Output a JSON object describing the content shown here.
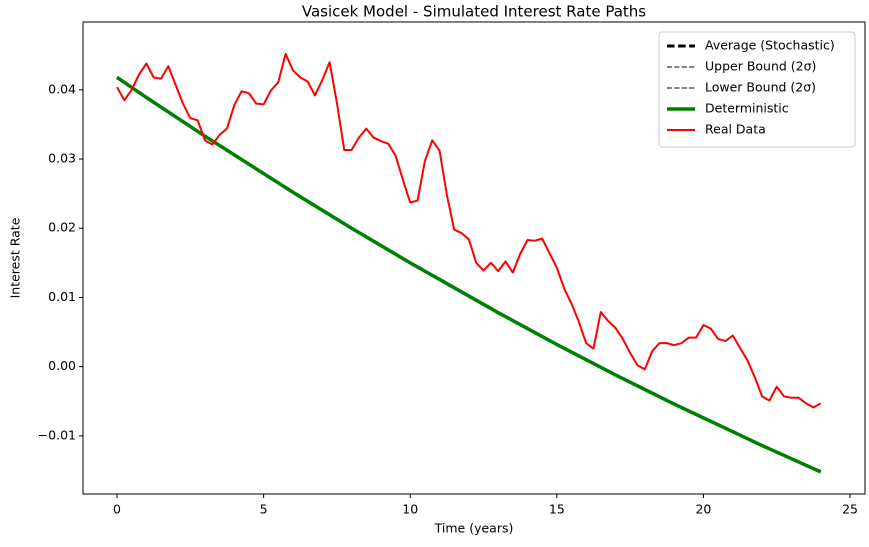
{
  "chart_data": {
    "type": "line",
    "title": "Vasicek Model - Simulated Interest Rate Paths",
    "x_label": "Time (years)",
    "y_label": "Interest Rate",
    "xlim": [
      -1.16,
      25.51
    ],
    "ylim": [
      -0.0184,
      0.0498
    ],
    "xticks": [
      0,
      5,
      10,
      15,
      20,
      25
    ],
    "yticks": [
      {
        "value": -0.01,
        "label": "−0.01"
      },
      {
        "value": 0,
        "label": "0.00"
      },
      {
        "value": 0.01,
        "label": "0.01"
      },
      {
        "value": 0.02,
        "label": "0.02"
      },
      {
        "value": 0.03,
        "label": "0.03"
      },
      {
        "value": 0.04,
        "label": "0.04"
      }
    ],
    "grid": false,
    "legend": "upper right",
    "x": [
      0,
      1,
      2,
      3,
      4,
      5,
      6,
      7,
      8,
      9,
      10,
      11,
      12,
      13,
      14,
      15,
      16,
      17,
      18,
      19,
      20,
      21,
      22,
      23,
      24
    ],
    "series": [
      {
        "name": "Average (Stochastic)",
        "color": "#000000",
        "linestyle": "dashed",
        "linewidth": 3,
        "values": [
          0.0418,
          0.0389,
          0.0361,
          0.0333,
          0.0306,
          0.0279,
          0.0252,
          0.0226,
          0.02,
          0.0175,
          0.015,
          0.0126,
          0.0102,
          0.0078,
          0.0055,
          0.0032,
          0.001,
          -0.0012,
          -0.0033,
          -0.0054,
          -0.0074,
          -0.0094,
          -0.0114,
          -0.0133,
          -0.0152
        ]
      },
      {
        "name": "Upper Bound (2σ)",
        "color": "#808080",
        "linestyle": "dashed",
        "linewidth": 2,
        "values": [
          0.0418,
          0.0389,
          0.0361,
          0.0333,
          0.0306,
          0.0279,
          0.0252,
          0.0226,
          0.02,
          0.0175,
          0.015,
          0.0126,
          0.0102,
          0.0078,
          0.0055,
          0.0032,
          0.001,
          -0.0012,
          -0.0033,
          -0.0054,
          -0.0074,
          -0.0094,
          -0.0114,
          -0.0133,
          -0.0152
        ]
      },
      {
        "name": "Lower Bound (2σ)",
        "color": "#808080",
        "linestyle": "dashed",
        "linewidth": 2,
        "values": [
          0.0418,
          0.0389,
          0.0361,
          0.0333,
          0.0306,
          0.0279,
          0.0252,
          0.0226,
          0.02,
          0.0175,
          0.015,
          0.0126,
          0.0102,
          0.0078,
          0.0055,
          0.0032,
          0.001,
          -0.0012,
          -0.0033,
          -0.0054,
          -0.0074,
          -0.0094,
          -0.0114,
          -0.0133,
          -0.0152
        ]
      },
      {
        "name": "Deterministic",
        "color": "#008000",
        "linestyle": "solid",
        "linewidth": 3.5,
        "values": [
          0.0418,
          0.0389,
          0.0361,
          0.0333,
          0.0306,
          0.0279,
          0.0252,
          0.0226,
          0.02,
          0.0175,
          0.015,
          0.0126,
          0.0102,
          0.0078,
          0.0055,
          0.0032,
          0.001,
          -0.0012,
          -0.0033,
          -0.0054,
          -0.0074,
          -0.0094,
          -0.0114,
          -0.0133,
          -0.0152
        ]
      },
      {
        "name": "Real Data",
        "color": "#ff0000",
        "linestyle": "solid",
        "linewidth": 2,
        "x": [
          0,
          0.25,
          0.5,
          0.75,
          1,
          1.25,
          1.5,
          1.75,
          2,
          2.25,
          2.5,
          2.75,
          3,
          3.25,
          3.5,
          3.75,
          4,
          4.25,
          4.5,
          4.75,
          5,
          5.25,
          5.5,
          5.75,
          6,
          6.25,
          6.5,
          6.75,
          7,
          7.25,
          7.5,
          7.75,
          8,
          8.25,
          8.5,
          8.75,
          9,
          9.25,
          9.5,
          9.75,
          10,
          10.25,
          10.5,
          10.75,
          11,
          11.25,
          11.5,
          11.75,
          12,
          12.25,
          12.5,
          12.75,
          13,
          13.25,
          13.5,
          13.75,
          14,
          14.25,
          14.5,
          14.75,
          15,
          15.25,
          15.5,
          15.75,
          16,
          16.25,
          16.5,
          16.75,
          17,
          17.25,
          17.5,
          17.75,
          18,
          18.25,
          18.5,
          18.75,
          19,
          19.25,
          19.5,
          19.75,
          20,
          20.25,
          20.5,
          20.75,
          21,
          21.25,
          21.5,
          21.75,
          22,
          22.25,
          22.5,
          22.75,
          23,
          23.25,
          23.5,
          23.75,
          24
        ],
        "values": [
          0.0404,
          0.0385,
          0.04,
          0.0422,
          0.0438,
          0.0418,
          0.0416,
          0.0434,
          0.0407,
          0.038,
          0.0359,
          0.0356,
          0.0327,
          0.0321,
          0.0335,
          0.0344,
          0.0378,
          0.0398,
          0.0395,
          0.038,
          0.0379,
          0.0399,
          0.0411,
          0.0452,
          0.0428,
          0.0418,
          0.0412,
          0.0392,
          0.0414,
          0.044,
          0.0381,
          0.0313,
          0.0313,
          0.0331,
          0.0344,
          0.0331,
          0.0326,
          0.0322,
          0.0305,
          0.027,
          0.0237,
          0.024,
          0.0297,
          0.0327,
          0.0312,
          0.0248,
          0.0198,
          0.0193,
          0.0184,
          0.015,
          0.0139,
          0.015,
          0.0138,
          0.0152,
          0.0136,
          0.0163,
          0.0183,
          0.0182,
          0.0185,
          0.0164,
          0.0143,
          0.0113,
          0.0091,
          0.0065,
          0.0034,
          0.0026,
          0.0079,
          0.0066,
          0.0056,
          0.004,
          0.002,
          0.0002,
          -0.0004,
          0.0022,
          0.0034,
          0.0034,
          0.0031,
          0.0034,
          0.0042,
          0.0042,
          0.006,
          0.0055,
          0.004,
          0.0037,
          0.0045,
          0.0027,
          0.0009,
          -0.0015,
          -0.0043,
          -0.0049,
          -0.0029,
          -0.0043,
          -0.0045,
          -0.0045,
          -0.0053,
          -0.0059,
          -0.0053
        ]
      }
    ]
  }
}
